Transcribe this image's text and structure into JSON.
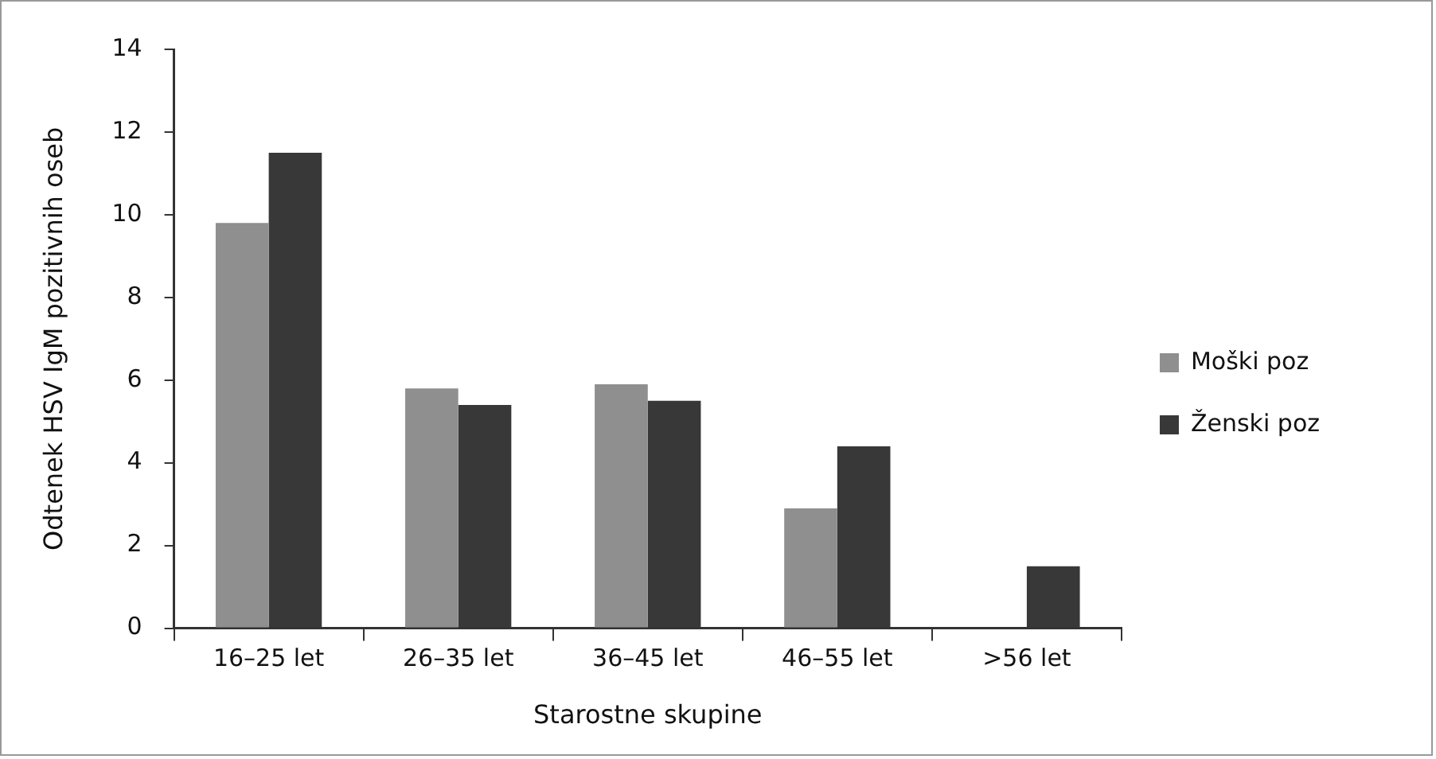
{
  "chart_data": {
    "type": "bar",
    "xlabel": "Starostne skupine",
    "ylabel": "Odtenek HSV IgM pozitivnih oseb",
    "categories": [
      "16–25 let",
      "26–35 let",
      "36–45 let",
      "46–55 let",
      ">56 let"
    ],
    "series": [
      {
        "name": "Moški poz",
        "color": "#8f8f8f",
        "values": [
          9.8,
          5.8,
          5.9,
          2.9,
          0
        ]
      },
      {
        "name": "Ženski poz",
        "color": "#383838",
        "values": [
          11.5,
          5.4,
          5.5,
          4.4,
          1.5
        ]
      }
    ],
    "ylim": [
      0,
      14
    ],
    "yticks": [
      0,
      2,
      4,
      6,
      8,
      10,
      12,
      14
    ],
    "grid": false,
    "legend": "right"
  }
}
